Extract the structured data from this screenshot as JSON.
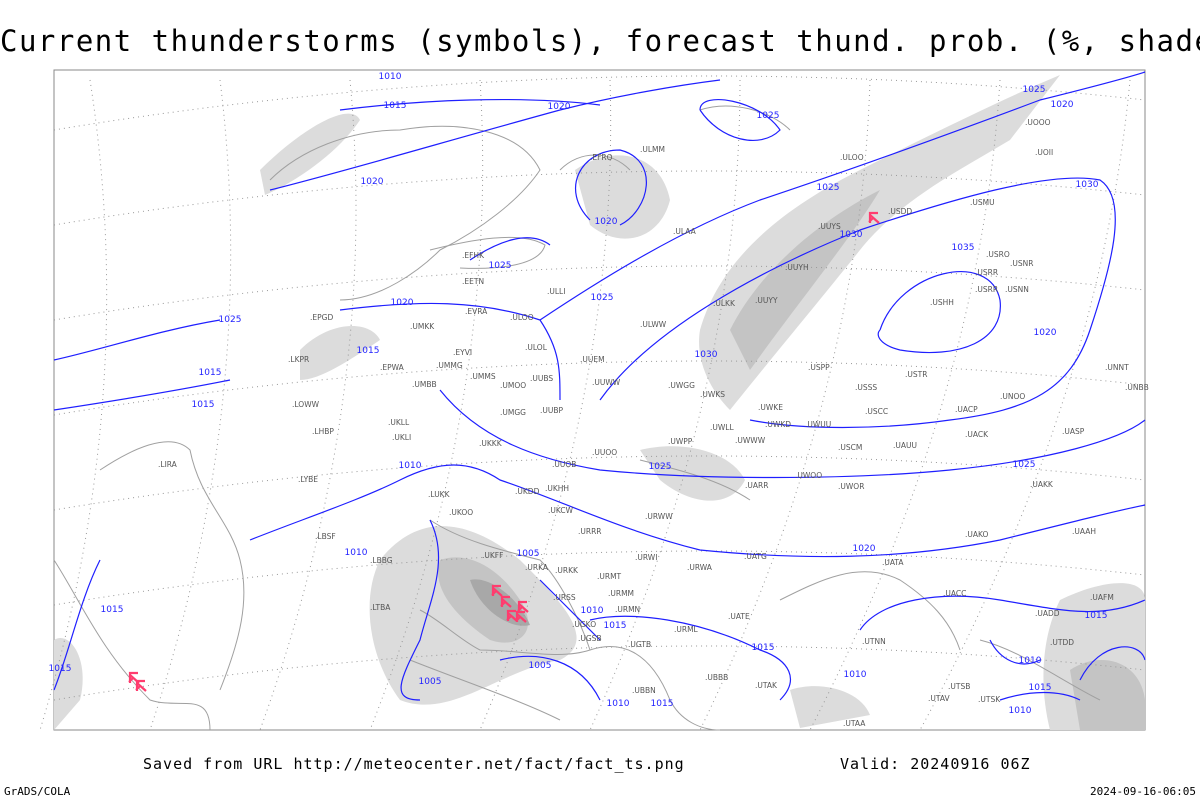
{
  "title": "Current thunderstorms (symbols), forecast thund. prob. (%, shaded)",
  "footer": {
    "source": "Saved from URL http://meteocenter.net/fact/fact_ts.png",
    "valid": "Valid: 20240916 06Z",
    "software": "GrADS/COLA",
    "generated": "2024-09-16-06:05"
  },
  "colors": {
    "isobar": "#1f1fff",
    "coastline": "#a0a0a0",
    "thunderstorm_symbol": "#ff3c6e",
    "shade_light": "#dcdcdc",
    "shade_mid": "#c4c4c4",
    "shade_dark": "#a8a8a8",
    "grid": "#999999"
  },
  "icons": {
    "thunderstorm": "thunderstorm-symbol-icon"
  },
  "isobar_labels": [
    "1010",
    "1015",
    "1020",
    "1020",
    "1025",
    "1020",
    "1025",
    "1020",
    "1025",
    "1030",
    "1025",
    "1030",
    "1035",
    "1025",
    "1020",
    "1015",
    "1025",
    "1015",
    "1015",
    "1010",
    "1020",
    "1025",
    "1030",
    "1025",
    "1010",
    "1005",
    "1010",
    "1015",
    "1015",
    "1005",
    "1005",
    "1010",
    "1015",
    "1020",
    "1015",
    "1010",
    "1015",
    "1010",
    "1015",
    "1010",
    "1015"
  ],
  "stations": [
    ".ULOO",
    ".UUYS",
    ".USDD",
    ".USMU",
    ".UOOO",
    ".UOII",
    ".USRO",
    ".USRR",
    ".USNR",
    ".USRR",
    ".USNN",
    ".USHH",
    ".UUYH",
    ".UUYY",
    ".ULKK",
    ".ULWW",
    ".ULAA",
    ".ULLI",
    ".ULOO",
    ".EVRA",
    ".UMKK",
    ".EPGD",
    ".ULOL",
    ".UUEM",
    ".UUWW",
    ".UUBS",
    ".UMMS",
    ".UMOO",
    ".UMMG",
    ".EYVI",
    ".EPWA",
    ".UMBB",
    ".LKPR",
    ".LOWW",
    ".LHBP",
    ".UKLL",
    ".UKLI",
    ".UMGG",
    ".UUBP",
    ".UUOO",
    ".UUOB",
    ".UKKK",
    ".UKHH",
    ".UKDD",
    ".UKFF",
    ".UKOO",
    ".LUKK",
    ".LYBE",
    ".LBSF",
    ".LBBG",
    ".LTBA",
    ".LIRA",
    ".URKA",
    ".URKK",
    ".URMT",
    ".URMM",
    ".URMN",
    ".URSS",
    ".UGKO",
    ".UGSB",
    ".UGTB",
    ".UBBN",
    ".URWI",
    ".URWA",
    ".UATG",
    ".URML",
    ".UATE",
    ".UTAK",
    ".URRR",
    ".UKCW",
    ".URWW",
    ".UWOO",
    ".UWUU",
    ".UWWW",
    ".UWKE",
    ".UWKD",
    ".UWLL",
    ".UWPP",
    ".UWGG",
    ".UWKS",
    ".USPP",
    ".USSS",
    ".USCC",
    ".USTR",
    ".USCM",
    ".UAUU",
    ".UACP",
    ".UNOO",
    ".UACK",
    ".UASP",
    ".UAKK",
    ".UARR",
    ".UWOR",
    ".UAKO",
    ".UAAH",
    ".UATA",
    ".UACC",
    ".UADD",
    ".UAFM",
    ".UTDD",
    ".UTAA",
    ".UTAV",
    ".UTSB",
    ".UTSK",
    ".UTNN",
    ".UNNT",
    ".UNBB",
    ".EFHK",
    ".EETN",
    ".EFRO",
    ".ULMM",
    ".UBBB"
  ]
}
